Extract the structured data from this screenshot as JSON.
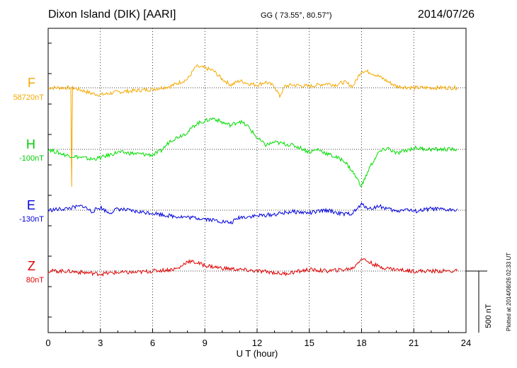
{
  "header": {
    "station": "Dixon Island (DIK)  [AARI]",
    "coords": "GG ( 73.55°,  80.57°)",
    "date": "2014/07/26"
  },
  "footer": {
    "plotted": "Plotted at 2014/08/26 02:33 UT"
  },
  "chart_data": {
    "type": "line",
    "xlabel": "U T (hour)",
    "xlim": [
      0,
      24
    ],
    "xticks": [
      "0",
      "3",
      "6",
      "9",
      "12",
      "15",
      "18",
      "21",
      "24"
    ],
    "scale_bar": "500 nT",
    "series": [
      {
        "name": "F",
        "baseline": "58720nT",
        "color": "#f5a800",
        "points": [
          [
            0,
            0
          ],
          [
            1.3,
            0
          ],
          [
            1.35,
            -350
          ],
          [
            1.4,
            0
          ],
          [
            2,
            -10
          ],
          [
            2.5,
            -20
          ],
          [
            3,
            -25
          ],
          [
            3.5,
            -20
          ],
          [
            4,
            -15
          ],
          [
            5,
            -10
          ],
          [
            6,
            -5
          ],
          [
            7,
            5
          ],
          [
            8,
            30
          ],
          [
            8.5,
            75
          ],
          [
            9,
            70
          ],
          [
            9.5,
            60
          ],
          [
            10,
            30
          ],
          [
            10.5,
            10
          ],
          [
            11,
            25
          ],
          [
            11.5,
            15
          ],
          [
            12,
            10
          ],
          [
            12.5,
            20
          ],
          [
            13,
            5
          ],
          [
            13.3,
            -30
          ],
          [
            13.6,
            5
          ],
          [
            14,
            10
          ],
          [
            15,
            5
          ],
          [
            16,
            15
          ],
          [
            16.5,
            10
          ],
          [
            17,
            20
          ],
          [
            17.5,
            5
          ],
          [
            18,
            60
          ],
          [
            18.5,
            55
          ],
          [
            19,
            40
          ],
          [
            20,
            5
          ],
          [
            21,
            0
          ],
          [
            22,
            0
          ],
          [
            23.5,
            0
          ]
        ]
      },
      {
        "name": "H",
        "baseline": "-100nT",
        "color": "#00dd00",
        "points": [
          [
            0,
            0
          ],
          [
            1,
            -20
          ],
          [
            2,
            -30
          ],
          [
            2.5,
            -35
          ],
          [
            3,
            -30
          ],
          [
            3.5,
            -20
          ],
          [
            4,
            -10
          ],
          [
            5,
            -15
          ],
          [
            6,
            -20
          ],
          [
            6.5,
            -5
          ],
          [
            7,
            30
          ],
          [
            8,
            60
          ],
          [
            8.5,
            90
          ],
          [
            9,
            100
          ],
          [
            9.5,
            110
          ],
          [
            10,
            95
          ],
          [
            10.5,
            85
          ],
          [
            11,
            100
          ],
          [
            11.5,
            80
          ],
          [
            12,
            40
          ],
          [
            12.5,
            15
          ],
          [
            13,
            25
          ],
          [
            13.5,
            20
          ],
          [
            14,
            15
          ],
          [
            14.5,
            5
          ],
          [
            15,
            -10
          ],
          [
            15.5,
            0
          ],
          [
            16,
            -15
          ],
          [
            17,
            -40
          ],
          [
            17.5,
            -80
          ],
          [
            18,
            -130
          ],
          [
            18.5,
            -60
          ],
          [
            19,
            -10
          ],
          [
            19.5,
            5
          ],
          [
            20,
            -15
          ],
          [
            20.5,
            -5
          ],
          [
            21,
            5
          ],
          [
            22,
            0
          ],
          [
            23.5,
            0
          ]
        ]
      },
      {
        "name": "E",
        "baseline": "-130nT",
        "color": "#0000dd",
        "points": [
          [
            0,
            0
          ],
          [
            1,
            5
          ],
          [
            2,
            15
          ],
          [
            2.5,
            -5
          ],
          [
            3,
            10
          ],
          [
            3.5,
            -10
          ],
          [
            4,
            5
          ],
          [
            5,
            -5
          ],
          [
            6,
            -10
          ],
          [
            7,
            -20
          ],
          [
            8,
            -25
          ],
          [
            9,
            -30
          ],
          [
            10,
            -40
          ],
          [
            10.5,
            -45
          ],
          [
            11,
            -25
          ],
          [
            12,
            -20
          ],
          [
            13,
            -15
          ],
          [
            14,
            -5
          ],
          [
            15,
            -10
          ],
          [
            16,
            0
          ],
          [
            17,
            -15
          ],
          [
            17.5,
            -10
          ],
          [
            18,
            20
          ],
          [
            18.5,
            5
          ],
          [
            19,
            15
          ],
          [
            20,
            -5
          ],
          [
            20.5,
            5
          ],
          [
            21,
            -5
          ],
          [
            22,
            5
          ],
          [
            23,
            0
          ],
          [
            23.5,
            5
          ]
        ]
      },
      {
        "name": "Z",
        "baseline": "80nT",
        "color": "#dd0000",
        "points": [
          [
            0,
            0
          ],
          [
            1,
            0
          ],
          [
            2,
            -5
          ],
          [
            3,
            -10
          ],
          [
            4,
            -5
          ],
          [
            5,
            -5
          ],
          [
            6,
            0
          ],
          [
            7,
            5
          ],
          [
            7.5,
            10
          ],
          [
            8,
            35
          ],
          [
            8.5,
            30
          ],
          [
            9,
            20
          ],
          [
            10,
            10
          ],
          [
            11,
            5
          ],
          [
            12,
            0
          ],
          [
            13,
            -5
          ],
          [
            13.5,
            -10
          ],
          [
            14,
            -5
          ],
          [
            15,
            5
          ],
          [
            16,
            0
          ],
          [
            17,
            5
          ],
          [
            17.5,
            10
          ],
          [
            18,
            45
          ],
          [
            18.5,
            30
          ],
          [
            19,
            15
          ],
          [
            20,
            5
          ],
          [
            21,
            0
          ],
          [
            22,
            0
          ],
          [
            23.5,
            0
          ]
        ]
      }
    ]
  }
}
